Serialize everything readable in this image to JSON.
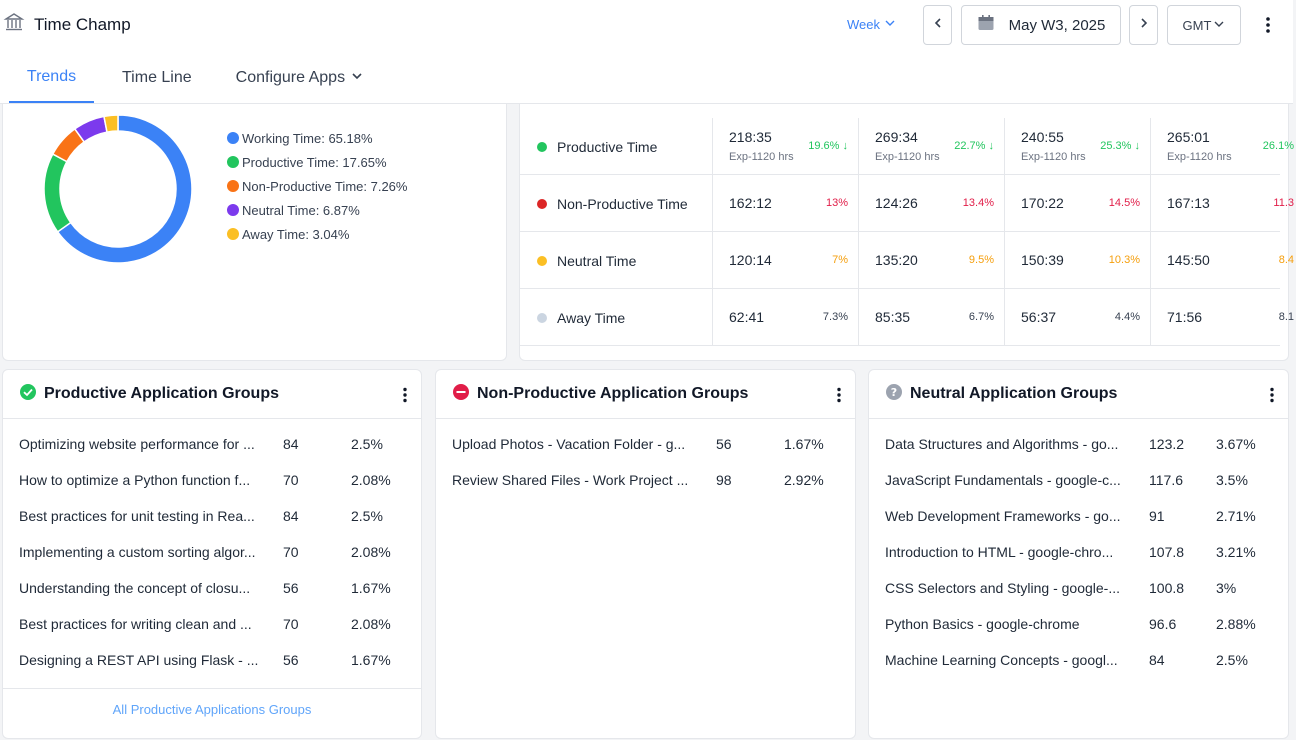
{
  "header": {
    "app_title": "Time Champ",
    "period": "Week",
    "date_range": "May W3, 2025",
    "timezone": "GMT"
  },
  "tabs": [
    {
      "label": "Trends"
    },
    {
      "label": "Time Line"
    },
    {
      "label": "Configure Apps"
    }
  ],
  "chart_data": {
    "type": "pie",
    "categories": [
      "Working Time",
      "Productive Time",
      "Non-Productive Time",
      "Neutral Time",
      "Away Time"
    ],
    "values": [
      65.18,
      17.65,
      7.26,
      6.87,
      3.04
    ],
    "colors": [
      "#3b82f6",
      "#22c55e",
      "#f97316",
      "#7c3aed",
      "#fbbf24"
    ],
    "legend": [
      "Working Time: 65.18%",
      "Productive Time: 17.65%",
      "Non-Productive Time: 7.26%",
      "Neutral Time: 6.87%",
      "Away Time: 3.04%"
    ],
    "legend_position": "right"
  },
  "time_table": {
    "rows": [
      {
        "label": "Productive Time",
        "color": "#22c55e",
        "cells": [
          {
            "value": "218:35",
            "exp": "Exp-1120 hrs",
            "pct": "19.6% ↓",
            "pct_color": "#22c55e"
          },
          {
            "value": "269:34",
            "exp": "Exp-1120 hrs",
            "pct": "22.7% ↓",
            "pct_color": "#22c55e"
          },
          {
            "value": "240:55",
            "exp": "Exp-1120 hrs",
            "pct": "25.3% ↓",
            "pct_color": "#22c55e"
          },
          {
            "value": "265:01",
            "exp": "Exp-1120 hrs",
            "pct": "26.1%",
            "pct_color": "#22c55e"
          }
        ]
      },
      {
        "label": "Non-Productive Time",
        "color": "#dc2626",
        "cells": [
          {
            "value": "162:12",
            "exp": "",
            "pct": "13%",
            "pct_color": "#e11d48"
          },
          {
            "value": "124:26",
            "exp": "",
            "pct": "13.4%",
            "pct_color": "#e11d48"
          },
          {
            "value": "170:22",
            "exp": "",
            "pct": "14.5%",
            "pct_color": "#e11d48"
          },
          {
            "value": "167:13",
            "exp": "",
            "pct": "11.3",
            "pct_color": "#e11d48"
          }
        ]
      },
      {
        "label": "Neutral Time",
        "color": "#fbbf24",
        "cells": [
          {
            "value": "120:14",
            "exp": "",
            "pct": "7%",
            "pct_color": "#f59e0b"
          },
          {
            "value": "135:20",
            "exp": "",
            "pct": "9.5%",
            "pct_color": "#f59e0b"
          },
          {
            "value": "150:39",
            "exp": "",
            "pct": "10.3%",
            "pct_color": "#f59e0b"
          },
          {
            "value": "145:50",
            "exp": "",
            "pct": "8.4",
            "pct_color": "#f59e0b"
          }
        ]
      },
      {
        "label": "Away Time",
        "color": "#cbd5e1",
        "cells": [
          {
            "value": "62:41",
            "exp": "",
            "pct": "7.3%",
            "pct_color": "#374151"
          },
          {
            "value": "85:35",
            "exp": "",
            "pct": "6.7%",
            "pct_color": "#374151"
          },
          {
            "value": "56:37",
            "exp": "",
            "pct": "4.4%",
            "pct_color": "#374151"
          },
          {
            "value": "71:56",
            "exp": "",
            "pct": "8.1",
            "pct_color": "#374151"
          }
        ]
      }
    ]
  },
  "groups": {
    "productive": {
      "title": "Productive Application Groups",
      "items": [
        {
          "name": "Optimizing website performance for ...",
          "count": "84",
          "pct": "2.5%"
        },
        {
          "name": "How to optimize a Python function f...",
          "count": "70",
          "pct": "2.08%"
        },
        {
          "name": "Best practices for unit testing in Rea...",
          "count": "84",
          "pct": "2.5%"
        },
        {
          "name": "Implementing a custom sorting algor...",
          "count": "70",
          "pct": "2.08%"
        },
        {
          "name": "Understanding the concept of closu...",
          "count": "56",
          "pct": "1.67%"
        },
        {
          "name": "Best practices for writing clean and ...",
          "count": "70",
          "pct": "2.08%"
        },
        {
          "name": "Designing a REST API using Flask - ...",
          "count": "56",
          "pct": "1.67%"
        }
      ],
      "footer_link": "All Productive Applications Groups"
    },
    "non_productive": {
      "title": "Non-Productive Application Groups",
      "items": [
        {
          "name": "Upload Photos - Vacation Folder - g...",
          "count": "56",
          "pct": "1.67%"
        },
        {
          "name": "Review Shared Files - Work Project ...",
          "count": "98",
          "pct": "2.92%"
        }
      ]
    },
    "neutral": {
      "title": "Neutral Application Groups",
      "items": [
        {
          "name": "Data Structures and Algorithms - go...",
          "count": "123.2",
          "pct": "3.67%"
        },
        {
          "name": "JavaScript Fundamentals - google-c...",
          "count": "117.6",
          "pct": "3.5%"
        },
        {
          "name": "Web Development Frameworks - go...",
          "count": "91",
          "pct": "2.71%"
        },
        {
          "name": "Introduction to HTML - google-chro...",
          "count": "107.8",
          "pct": "3.21%"
        },
        {
          "name": "CSS Selectors and Styling - google-...",
          "count": "100.8",
          "pct": "3%"
        },
        {
          "name": "Python Basics - google-chrome",
          "count": "96.6",
          "pct": "2.88%"
        },
        {
          "name": "Machine Learning Concepts - googl...",
          "count": "84",
          "pct": "2.5%"
        }
      ]
    }
  }
}
